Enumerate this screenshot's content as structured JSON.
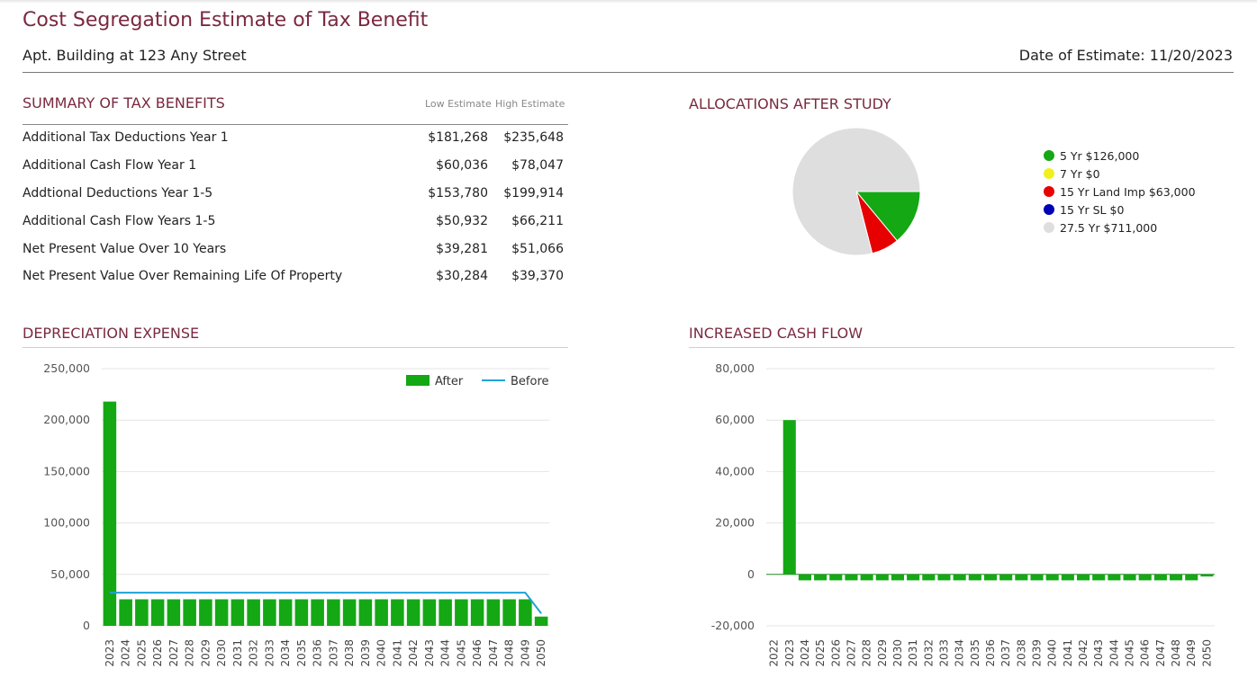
{
  "header": {
    "title": "Cost Segregation Estimate of Tax Benefit",
    "property": "Apt. Building at 123 Any Street",
    "date_label": "Date of Estimate:",
    "date_value": "11/20/2023"
  },
  "summary": {
    "title": "SUMMARY OF TAX BENEFITS",
    "col_low": "Low Estimate",
    "col_high": "High Estimate",
    "rows": [
      {
        "label": "Additional Tax Deductions Year 1",
        "low": "$181,268",
        "high": "$235,648"
      },
      {
        "label": "Additional Cash Flow Year 1",
        "low": "$60,036",
        "high": "$78,047"
      },
      {
        "label": "Addtional Deductions Year 1-5",
        "low": "$153,780",
        "high": "$199,914"
      },
      {
        "label": "Additional Cash Flow Years 1-5",
        "low": "$50,932",
        "high": "$66,211"
      },
      {
        "label": "Net Present Value Over 10 Years",
        "low": "$39,281",
        "high": "$51,066"
      },
      {
        "label": "Net Present Value Over Remaining Life Of Property",
        "low": "$30,284",
        "high": "$39,370"
      }
    ]
  },
  "allocations": {
    "title": "ALLOCATIONS AFTER STUDY"
  },
  "depreciation": {
    "title": "DEPRECIATION EXPENSE"
  },
  "cashflow": {
    "title": "INCREASED CASH FLOW"
  },
  "chart_data": [
    {
      "type": "pie",
      "slices": [
        {
          "label": "5 Yr $126,000",
          "value": 126000,
          "color": "#14a814"
        },
        {
          "label": "7 Yr $0",
          "value": 0,
          "color": "#f0f020"
        },
        {
          "label": "15 Yr Land Imp $63,000",
          "value": 63000,
          "color": "#e60000"
        },
        {
          "label": "15 Yr SL $0",
          "value": 0,
          "color": "#0000b4"
        },
        {
          "label": "27.5 Yr $711,000",
          "value": 711000,
          "color": "#dedede"
        }
      ]
    },
    {
      "type": "bar",
      "categories": [
        "2023",
        "2024",
        "2025",
        "2026",
        "2027",
        "2028",
        "2029",
        "2030",
        "2031",
        "2032",
        "2033",
        "2034",
        "2035",
        "2036",
        "2037",
        "2038",
        "2039",
        "2040",
        "2041",
        "2042",
        "2043",
        "2044",
        "2045",
        "2046",
        "2047",
        "2048",
        "2049",
        "2050"
      ],
      "series": [
        {
          "name": "After",
          "kind": "bar",
          "color": "#14a814",
          "values": [
            218000,
            25800,
            25800,
            25800,
            25800,
            25800,
            25800,
            25800,
            25800,
            25800,
            25800,
            25800,
            25800,
            25800,
            25800,
            25800,
            25800,
            25800,
            25800,
            25800,
            25800,
            25800,
            25800,
            25800,
            25800,
            25800,
            25800,
            9000
          ]
        },
        {
          "name": "Before",
          "kind": "line",
          "color": "#1fa3d8",
          "values": [
            32200,
            32200,
            32200,
            32200,
            32200,
            32200,
            32200,
            32200,
            32200,
            32200,
            32200,
            32200,
            32200,
            32200,
            32200,
            32200,
            32200,
            32200,
            32200,
            32200,
            32200,
            32200,
            32200,
            32200,
            32200,
            32200,
            32200,
            12000
          ]
        }
      ],
      "ylim": [
        0,
        250000
      ],
      "yticks": [
        "250,000",
        "200,000",
        "150,000",
        "100,000",
        "50,000",
        "0"
      ],
      "ytick_values": [
        250000,
        200000,
        150000,
        100000,
        50000,
        0
      ],
      "legend": "top-right",
      "grid": true
    },
    {
      "type": "bar",
      "categories": [
        "2022",
        "2023",
        "2024",
        "2025",
        "2026",
        "2027",
        "2028",
        "2029",
        "2030",
        "2031",
        "2032",
        "2033",
        "2034",
        "2035",
        "2036",
        "2037",
        "2038",
        "2039",
        "2040",
        "2041",
        "2042",
        "2043",
        "2044",
        "2045",
        "2046",
        "2047",
        "2048",
        "2049",
        "2050"
      ],
      "series": [
        {
          "name": "",
          "kind": "bar",
          "color": "#14a814",
          "values": [
            0,
            60000,
            -2300,
            -2300,
            -2300,
            -2300,
            -2300,
            -2300,
            -2300,
            -2300,
            -2300,
            -2300,
            -2300,
            -2300,
            -2300,
            -2300,
            -2300,
            -2300,
            -2300,
            -2300,
            -2300,
            -2300,
            -2300,
            -2300,
            -2300,
            -2300,
            -2300,
            -2300,
            -800
          ]
        }
      ],
      "ylim": [
        -20000,
        80000
      ],
      "yticks": [
        "80,000",
        "60,000",
        "40,000",
        "20,000",
        "0",
        "-20,000"
      ],
      "ytick_values": [
        80000,
        60000,
        40000,
        20000,
        0,
        -20000
      ],
      "grid": true
    }
  ]
}
